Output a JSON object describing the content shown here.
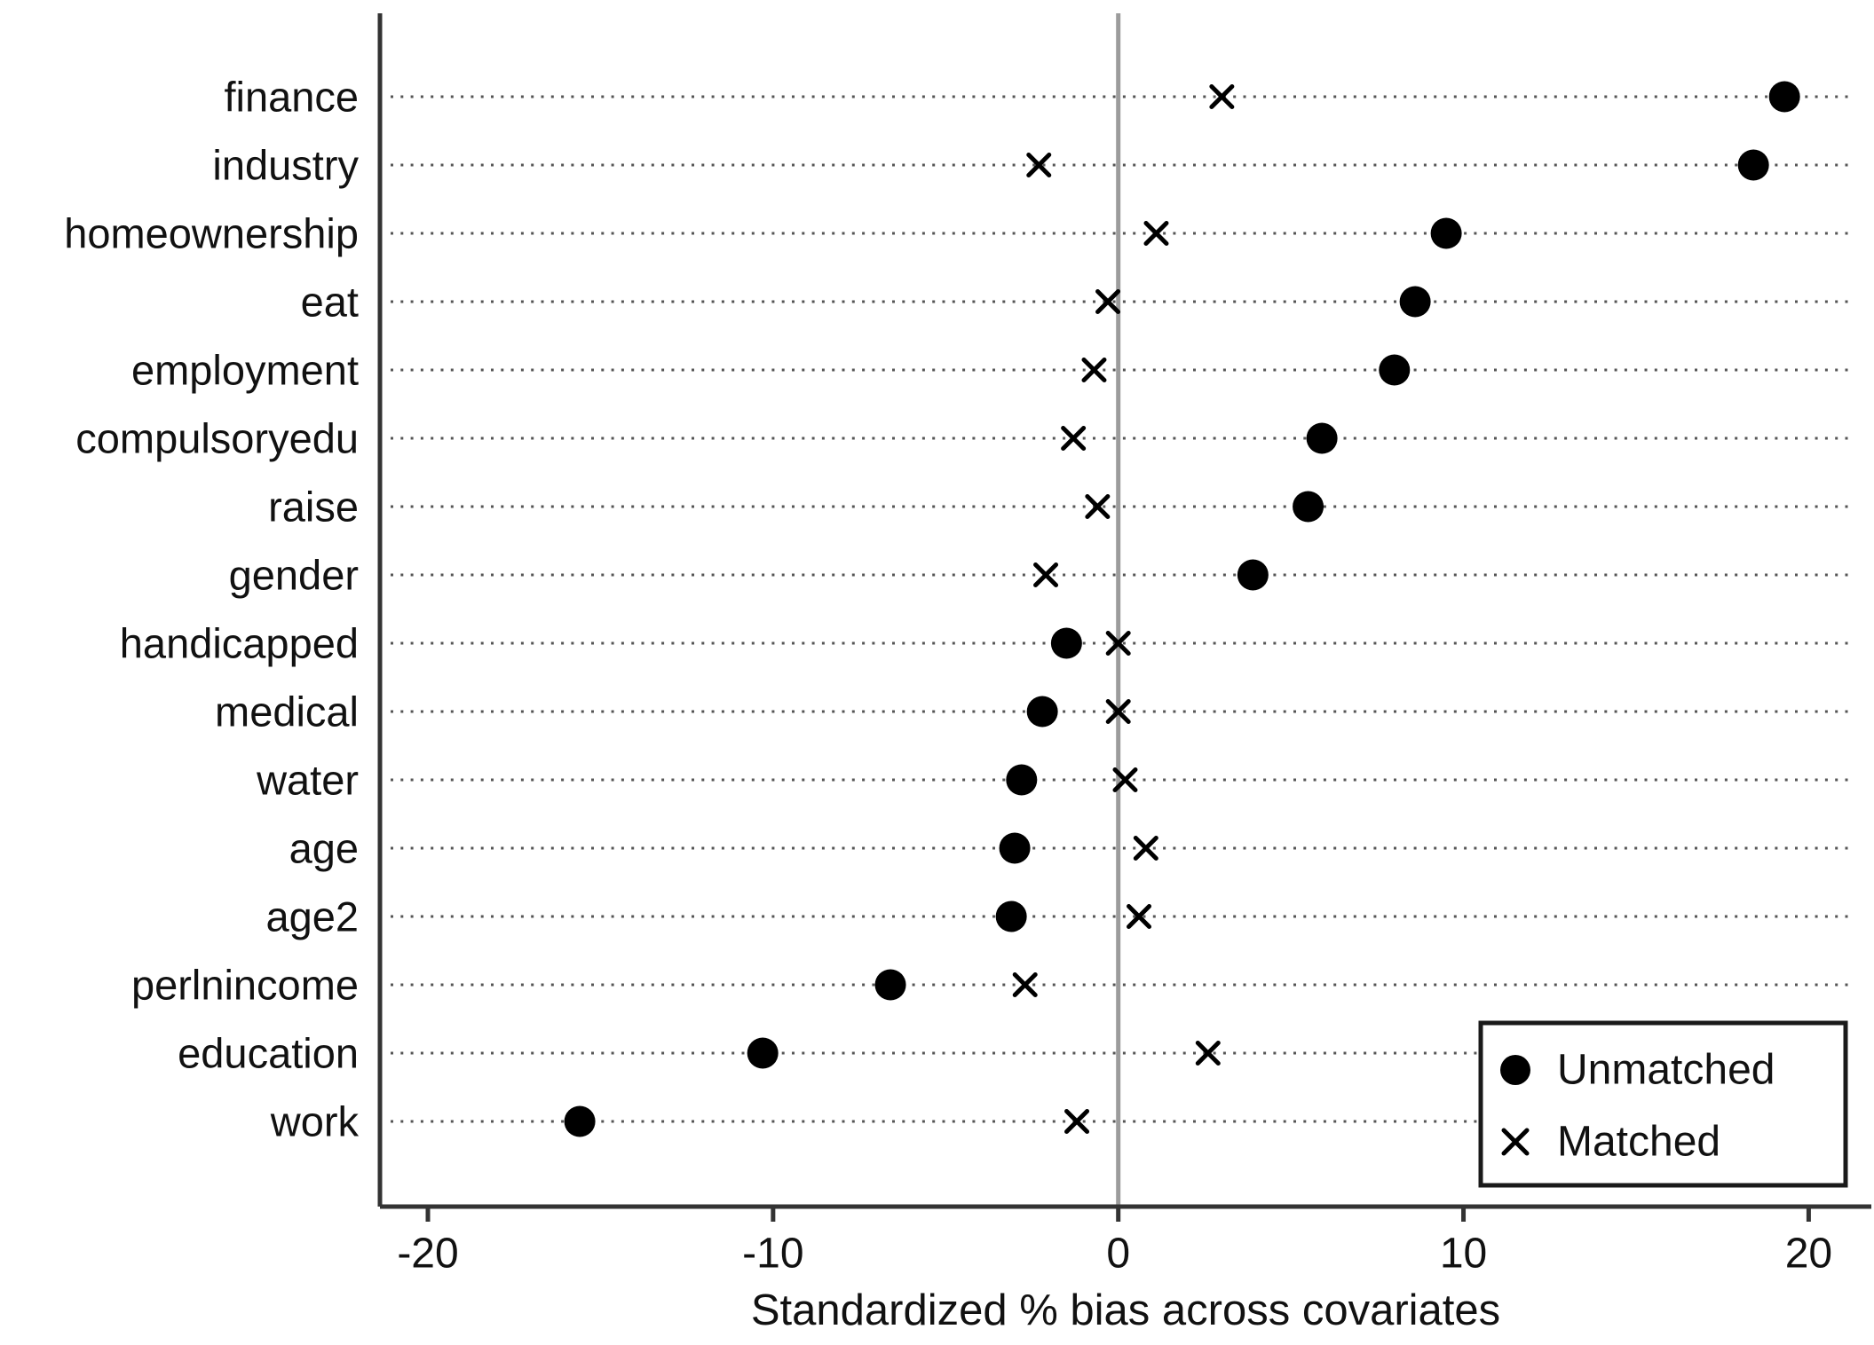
{
  "chart_data": {
    "type": "scatter",
    "title": "",
    "xlabel": "Standardized % bias across covariates",
    "ylabel": "",
    "xlim": [
      -21.4,
      21.8
    ],
    "xticks": [
      -20,
      -10,
      0,
      10,
      20
    ],
    "refline_x": 0,
    "grid": "dotted-horizontal-per-category",
    "legend_position": "bottom-right",
    "categories": [
      "finance",
      "industry",
      "homeownership",
      "eat",
      "employment",
      "compulsoryedu",
      "raise",
      "gender",
      "handicapped",
      "medical",
      "water",
      "age",
      "age2",
      "perlnincome",
      "education",
      "work"
    ],
    "series": [
      {
        "name": "Unmatched",
        "marker": "circle",
        "values": [
          19.3,
          18.4,
          9.5,
          8.6,
          8.0,
          5.9,
          5.5,
          3.9,
          -1.5,
          -2.2,
          -2.8,
          -3.0,
          -3.1,
          -6.6,
          -10.3,
          -15.6
        ]
      },
      {
        "name": "Matched",
        "marker": "x",
        "values": [
          3.0,
          -2.3,
          1.1,
          -0.3,
          -0.7,
          -1.3,
          -0.6,
          -2.1,
          0.0,
          0.0,
          0.2,
          0.8,
          0.6,
          -2.7,
          2.6,
          -1.2
        ]
      }
    ]
  },
  "legend": {
    "items": [
      {
        "label": "Unmatched",
        "marker": "circle"
      },
      {
        "label": "Matched",
        "marker": "x"
      }
    ]
  },
  "colors": {
    "background": "#ffffff",
    "marker": "#000000",
    "axis": "#333333",
    "refline": "#9c9c9c",
    "grid_dots": "#555555",
    "text": "#111111",
    "legend_border": "#1a1a1a"
  }
}
